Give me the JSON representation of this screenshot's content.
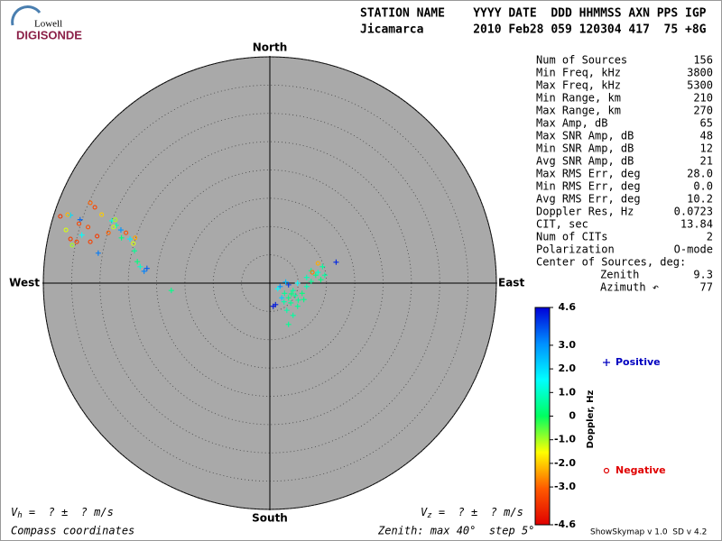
{
  "logo": {
    "top": "Lowell",
    "bottom": "DIGISONDE"
  },
  "header": {
    "line1": "STATION NAME    YYYY DATE  DDD HHMMSS AXN PPS IGP",
    "line2": "Jicamarca       2010 Feb28 059 120304 417  75 +8G"
  },
  "stats": [
    {
      "label": "Num of Sources",
      "value": "156"
    },
    {
      "label": "Min Freq, kHz",
      "value": "3800"
    },
    {
      "label": "Max Freq, kHz",
      "value": "5300"
    },
    {
      "label": "Min Range, km",
      "value": "210"
    },
    {
      "label": "Max Range, km",
      "value": "270"
    },
    {
      "label": "Max Amp, dB",
      "value": "65"
    },
    {
      "label": "Max SNR Amp, dB",
      "value": "48"
    },
    {
      "label": "Min SNR Amp, dB",
      "value": "12"
    },
    {
      "label": "Avg SNR Amp, dB",
      "value": "21"
    },
    {
      "label": "Max RMS Err, deg",
      "value": "28.0"
    },
    {
      "label": "Min RMS Err, deg",
      "value": "0.0"
    },
    {
      "label": "Avg RMS Err, deg",
      "value": "10.2"
    },
    {
      "label": "Doppler Res, Hz",
      "value": "0.0723"
    },
    {
      "label": "CIT, sec",
      "value": "13.84"
    },
    {
      "label": "Num of CITs",
      "value": "2"
    },
    {
      "label": "Polarization",
      "value": "O-mode"
    }
  ],
  "center": {
    "title": "Center of Sources, deg:",
    "rows": [
      {
        "label": "Zenith",
        "value": "9.3"
      },
      {
        "label": "Azimuth ↶",
        "value": "77"
      }
    ]
  },
  "footer": {
    "vh": "V",
    "vh_sub": "h",
    "vh_rest": " =  ? ±  ? m/s",
    "vz": "V",
    "vz_sub": "z",
    "vz_rest": " =  ? ±  ? m/s",
    "left": "Compass coordinates",
    "middle": "Zenith: max 40°  step 5°",
    "right": "ShowSkymap v 1.0  SD v 4.2"
  },
  "chart_data": {
    "type": "skymap",
    "directions": {
      "north": "North",
      "south": "South",
      "east": "East",
      "west": "West"
    },
    "rlim": [
      0,
      40
    ],
    "rings": [
      5,
      10,
      15,
      20,
      25,
      30,
      35,
      40
    ],
    "clim": [
      -4.6,
      4.6
    ],
    "colormap": [
      "#e00000",
      "#ff5a00",
      "#ffff00",
      "#00ff60",
      "#00ffff",
      "#0090ff",
      "#0000d8"
    ],
    "color_label": "Doppler, Hz",
    "cticks": [
      4.6,
      {
        "value": 3,
        "label": "3.0"
      },
      {
        "value": 2,
        "label": "2.0"
      },
      {
        "value": 1,
        "label": "1.0"
      },
      0,
      {
        "value": -1,
        "label": "-1.0"
      },
      {
        "value": -2,
        "label": "-2.0"
      },
      {
        "value": -3,
        "label": "-3.0"
      },
      -4.6
    ],
    "series": [
      {
        "name": "Positive",
        "color": "#0000c0",
        "marker": "plus",
        "x": [
          -35.2,
          -33.5,
          -33.2,
          -30.3,
          -27.9,
          -27.1,
          -26.3,
          -24.7,
          -23.9,
          -23.4,
          -22.9,
          -22.2,
          -21.7,
          -17.4,
          -26.2,
          11.7,
          9.3,
          7.3,
          6.5,
          4.9,
          3.3,
          1.8,
          0.6,
          1.0,
          2.6,
          3.3,
          4.1,
          3.0,
          4.9,
          5.7,
          2.1,
          3.7,
          6.5,
          7.3,
          8.1,
          8.5,
          9.7,
          3.3,
          4.1,
          1.4,
          9.0,
          5.0,
          4.5,
          2.5,
          6.0,
          3.8,
          2.8
        ],
        "y": [
          12.0,
          11.2,
          8.5,
          5.3,
          11.0,
          10.2,
          9.4,
          7.8,
          5.7,
          3.8,
          2.9,
          2.1,
          2.6,
          -1.3,
          8.0,
          3.7,
          2.9,
          2.2,
          1.0,
          0.0,
          -0.3,
          -0.6,
          -4.1,
          -3.8,
          -1.8,
          -2.6,
          -1.3,
          -4.8,
          -4.1,
          -1.8,
          -2.6,
          -3.5,
          -0.6,
          0.3,
          1.4,
          1.9,
          1.4,
          -7.3,
          -5.7,
          -1.0,
          0.6,
          -3.0,
          -2.2,
          -3.3,
          -2.9,
          -1.9,
          0.2
        ],
        "doppler": [
          2.0,
          3.5,
          1.5,
          3.3,
          1.2,
          0.8,
          3.0,
          1.8,
          0.5,
          0.3,
          1.0,
          3.2,
          3.6,
          0.4,
          0.3,
          4.2,
          0.6,
          0.5,
          0.8,
          1.5,
          4.0,
          3.0,
          4.4,
          4.3,
          0.5,
          0.4,
          0.6,
          0.7,
          0.5,
          0.3,
          2.2,
          0.5,
          0.8,
          0.5,
          0.4,
          1.0,
          0.6,
          0.5,
          0.6,
          1.5,
          0.3,
          0.5,
          0.6,
          0.7,
          0.4,
          0.3,
          2.5
        ]
      },
      {
        "name": "Negative",
        "color": "#e00000",
        "marker": "circle",
        "x": [
          -37.0,
          -35.7,
          -36.0,
          -35.2,
          -34.1,
          -31.7,
          -33.7,
          -32.1,
          -31.7,
          -30.9,
          -30.5,
          -29.7,
          -28.5,
          -27.6,
          -27.3,
          -25.4,
          -24.1,
          -23.8,
          -34.9,
          8.5,
          7.5
        ],
        "y": [
          11.8,
          12.1,
          9.4,
          7.8,
          7.3,
          7.3,
          10.5,
          9.9,
          14.2,
          13.4,
          8.3,
          12.1,
          8.9,
          9.9,
          11.2,
          8.9,
          7.0,
          8.0,
          6.7,
          3.5,
          1.9
        ],
        "doppler": [
          -3.6,
          -2.2,
          -1.3,
          -3.5,
          -3.4,
          -3.5,
          -3.4,
          -3.3,
          -3.0,
          -3.4,
          -3.6,
          -2.0,
          -3.0,
          -1.2,
          -1.0,
          -3.2,
          -1.3,
          -2.4,
          -1.0,
          -2.3,
          -2.8
        ]
      }
    ]
  }
}
